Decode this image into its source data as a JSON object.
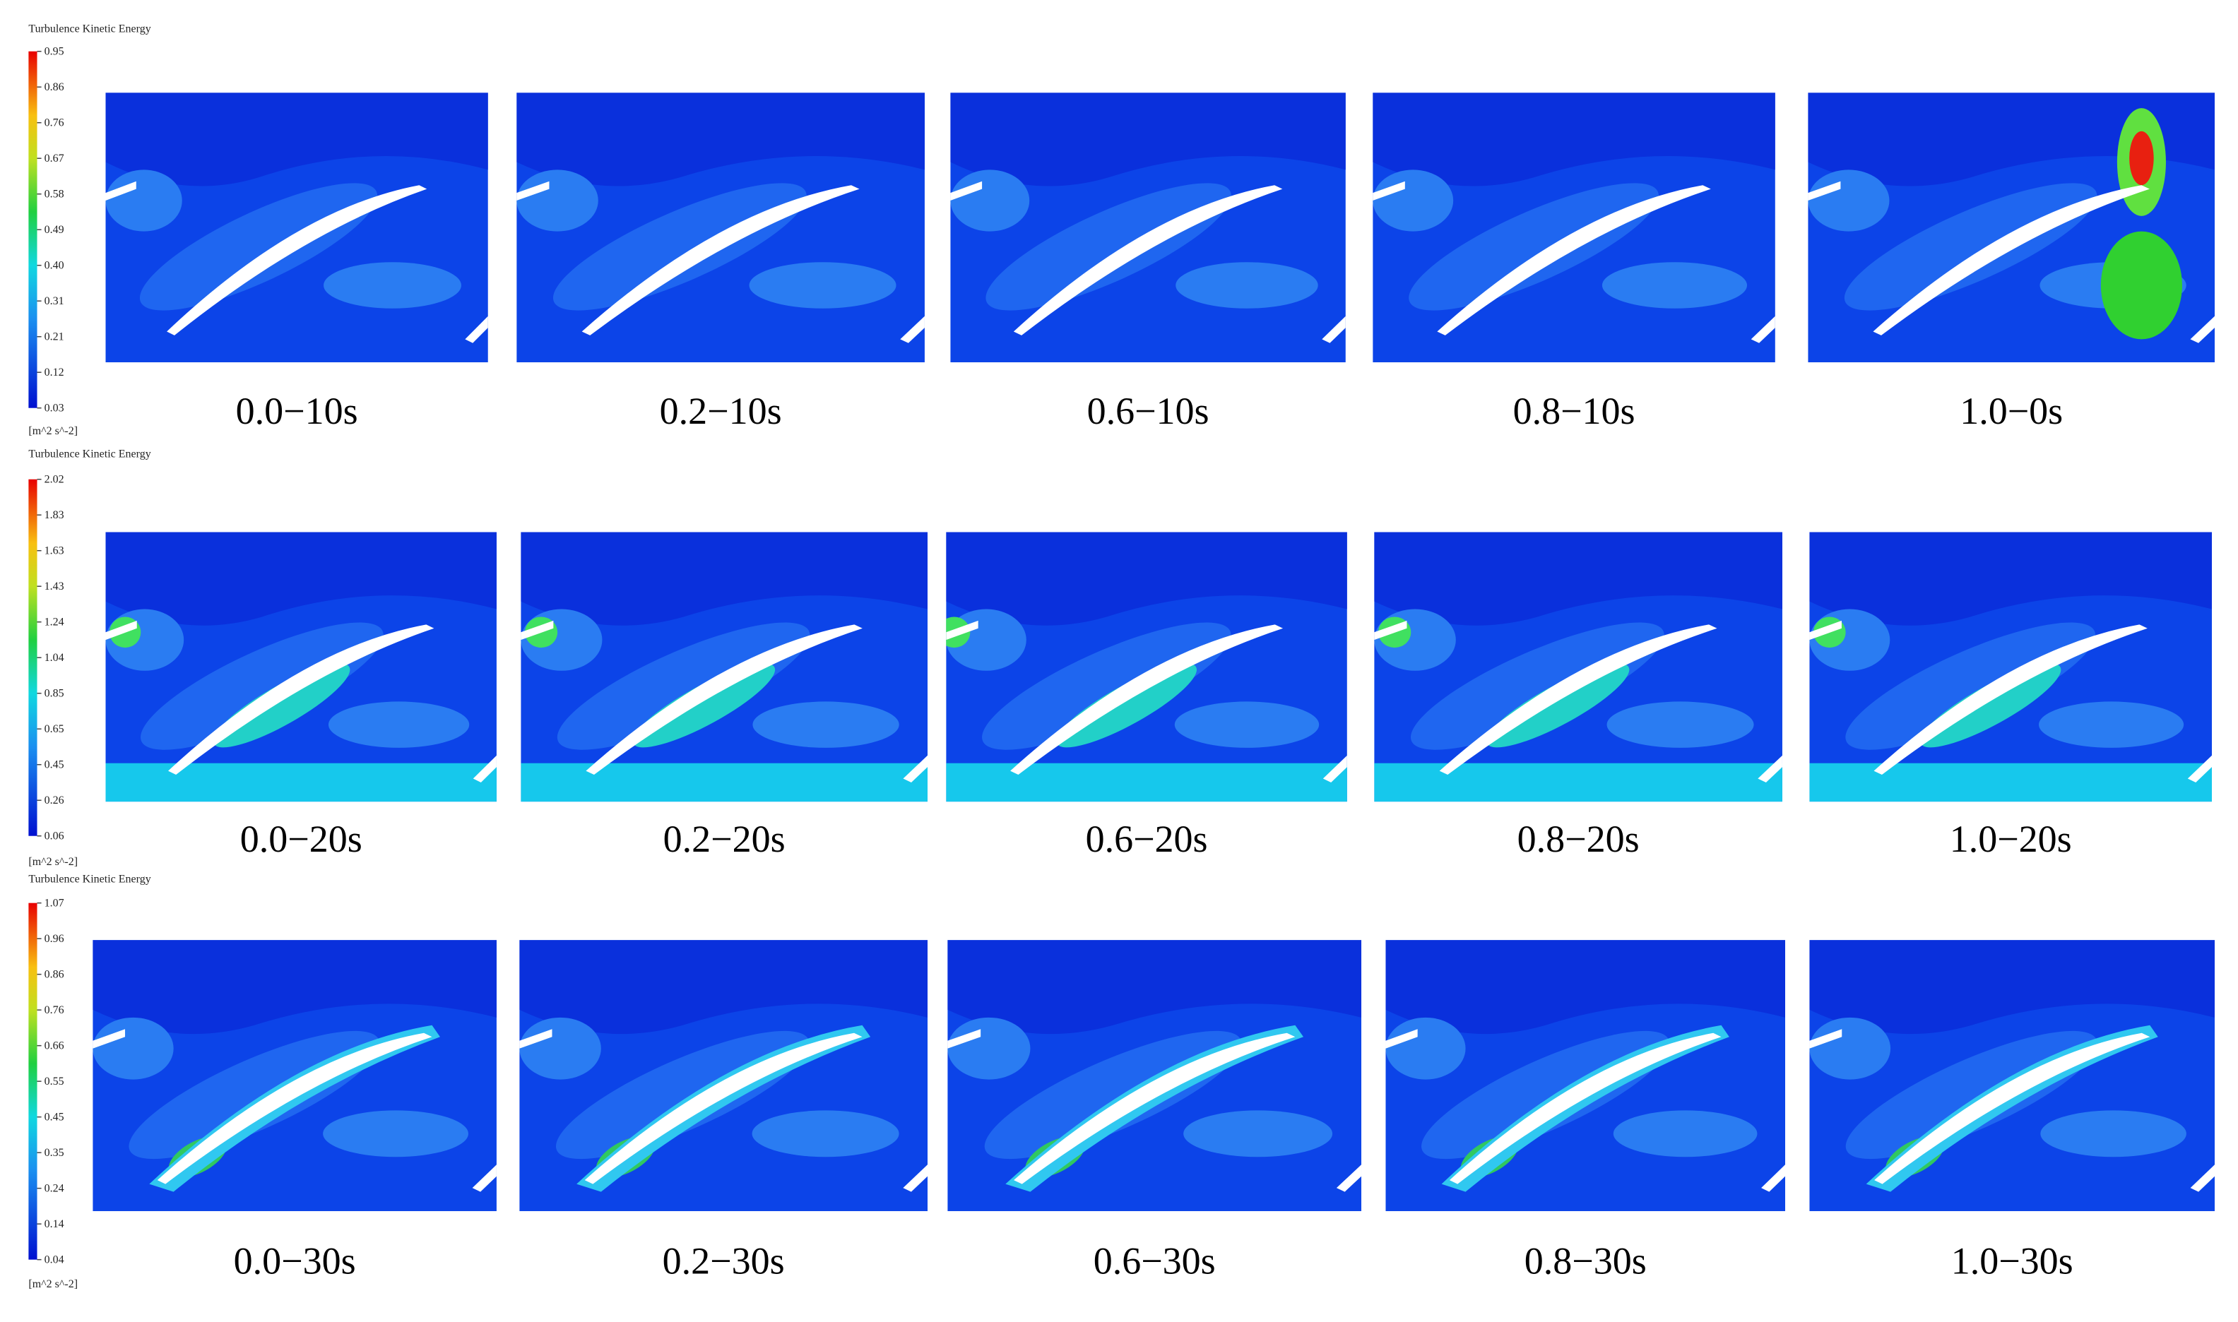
{
  "rows": [
    {
      "legend": {
        "title": "Turbulence Kinetic Energy",
        "ticks": [
          "0.95",
          "0.86",
          "0.76",
          "0.67",
          "0.58",
          "0.49",
          "0.40",
          "0.31",
          "0.21",
          "0.12",
          "0.03"
        ],
        "unit": "[m^2 s^-2]"
      },
      "panels": [
        {
          "caption": "0.0−10s"
        },
        {
          "caption": "0.2−10s"
        },
        {
          "caption": "0.6−10s"
        },
        {
          "caption": "0.8−10s"
        },
        {
          "caption": "1.0−0s"
        }
      ]
    },
    {
      "legend": {
        "title": "Turbulence Kinetic Energy",
        "ticks": [
          "2.02",
          "1.83",
          "1.63",
          "1.43",
          "1.24",
          "1.04",
          "0.85",
          "0.65",
          "0.45",
          "0.26",
          "0.06"
        ],
        "unit": "[m^2 s^-2]"
      },
      "panels": [
        {
          "caption": "0.0−20s"
        },
        {
          "caption": "0.2−20s"
        },
        {
          "caption": "0.6−20s"
        },
        {
          "caption": "0.8−20s"
        },
        {
          "caption": "1.0−20s"
        }
      ]
    },
    {
      "legend": {
        "title": "Turbulence Kinetic Energy",
        "ticks": [
          "1.07",
          "0.96",
          "0.86",
          "0.76",
          "0.66",
          "0.55",
          "0.45",
          "0.35",
          "0.24",
          "0.14",
          "0.04"
        ],
        "unit": "[m^2 s^-2]"
      },
      "panels": [
        {
          "caption": "0.0−30s"
        },
        {
          "caption": "0.2−30s"
        },
        {
          "caption": "0.6−30s"
        },
        {
          "caption": "0.8−30s"
        },
        {
          "caption": "1.0−30s"
        }
      ]
    }
  ]
}
